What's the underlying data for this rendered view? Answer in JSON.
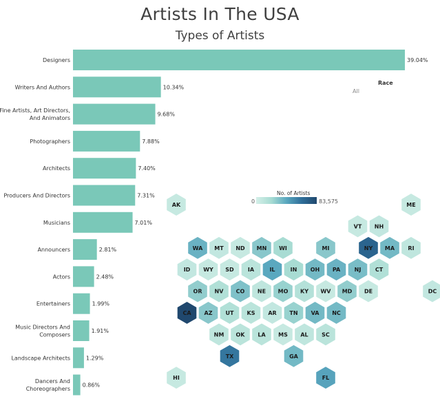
{
  "title": "Artists In The USA",
  "filter": {
    "label": "Race",
    "value": "All"
  },
  "legend": {
    "title": "No. of Artists",
    "min": "0",
    "max": "83,575"
  },
  "chart_data": [
    {
      "type": "bar",
      "orientation": "horizontal",
      "title": "Types of Artists",
      "color": "#7ac8b8",
      "xlim": [
        0,
        39.04
      ],
      "categories": [
        [
          "Designers"
        ],
        [
          "Writers And Authors"
        ],
        [
          "Fine Artists, Art Directors,",
          "And Animators"
        ],
        [
          "Photographers"
        ],
        [
          "Architects"
        ],
        [
          "Producers And Directors"
        ],
        [
          "Musicians"
        ],
        [
          "Announcers"
        ],
        [
          "Actors"
        ],
        [
          "Entertainers"
        ],
        [
          "Music Directors And",
          "Composers"
        ],
        [
          "Landscape Architects"
        ],
        [
          "Dancers And",
          "Choreographers"
        ]
      ],
      "values": [
        39.04,
        10.34,
        9.68,
        7.88,
        7.4,
        7.31,
        7.01,
        2.81,
        2.48,
        1.99,
        1.91,
        1.29,
        0.86
      ],
      "value_labels": [
        "39.04%",
        "10.34%",
        "9.68%",
        "7.88%",
        "7.40%",
        "7.31%",
        "7.01%",
        "2.81%",
        "2.48%",
        "1.99%",
        "1.91%",
        "1.29%",
        "0.86%"
      ]
    },
    {
      "type": "heatmap",
      "subtype": "hex tile map",
      "color_scale": {
        "min": 0,
        "max": 83575,
        "low_color": "#d4efe8",
        "high_color": "#20486e"
      },
      "tiles": [
        {
          "state": "AK",
          "row": 0,
          "col": 0,
          "level": 0.08
        },
        {
          "state": "ME",
          "row": 0,
          "col": 11,
          "level": 0.08
        },
        {
          "state": "VT",
          "row": 1,
          "col": 9,
          "level": 0.08
        },
        {
          "state": "NH",
          "row": 1,
          "col": 10,
          "level": 0.1
        },
        {
          "state": "WA",
          "row": 2,
          "col": 1,
          "level": 0.45
        },
        {
          "state": "MT",
          "row": 2,
          "col": 2,
          "level": 0.1
        },
        {
          "state": "ND",
          "row": 2,
          "col": 3,
          "level": 0.08
        },
        {
          "state": "MN",
          "row": 2,
          "col": 4,
          "level": 0.35
        },
        {
          "state": "WI",
          "row": 2,
          "col": 5,
          "level": 0.25
        },
        {
          "state": "MI",
          "row": 2,
          "col": 7,
          "level": 0.35
        },
        {
          "state": "NY",
          "row": 2,
          "col": 9,
          "level": 0.82
        },
        {
          "state": "MA",
          "row": 2,
          "col": 10,
          "level": 0.42
        },
        {
          "state": "RI",
          "row": 2,
          "col": 11,
          "level": 0.12
        },
        {
          "state": "ID",
          "row": 3,
          "col": 1,
          "level": 0.1
        },
        {
          "state": "WY",
          "row": 3,
          "col": 2,
          "level": 0.08
        },
        {
          "state": "SD",
          "row": 3,
          "col": 3,
          "level": 0.08
        },
        {
          "state": "IA",
          "row": 3,
          "col": 4,
          "level": 0.15
        },
        {
          "state": "IL",
          "row": 3,
          "col": 5,
          "level": 0.5
        },
        {
          "state": "IN",
          "row": 3,
          "col": 6,
          "level": 0.25
        },
        {
          "state": "OH",
          "row": 3,
          "col": 7,
          "level": 0.42
        },
        {
          "state": "PA",
          "row": 3,
          "col": 8,
          "level": 0.45
        },
        {
          "state": "NJ",
          "row": 3,
          "col": 9,
          "level": 0.4
        },
        {
          "state": "CT",
          "row": 3,
          "col": 10,
          "level": 0.2
        },
        {
          "state": "OR",
          "row": 4,
          "col": 1,
          "level": 0.32
        },
        {
          "state": "NV",
          "row": 4,
          "col": 2,
          "level": 0.2
        },
        {
          "state": "CO",
          "row": 4,
          "col": 3,
          "level": 0.38
        },
        {
          "state": "NE",
          "row": 4,
          "col": 4,
          "level": 0.12
        },
        {
          "state": "MO",
          "row": 4,
          "col": 5,
          "level": 0.3
        },
        {
          "state": "KY",
          "row": 4,
          "col": 6,
          "level": 0.18
        },
        {
          "state": "WV",
          "row": 4,
          "col": 7,
          "level": 0.08
        },
        {
          "state": "MD",
          "row": 4,
          "col": 8,
          "level": 0.32
        },
        {
          "state": "DE",
          "row": 4,
          "col": 9,
          "level": 0.08
        },
        {
          "state": "DC",
          "row": 4,
          "col": 12,
          "level": 0.1
        },
        {
          "state": "CA",
          "row": 5,
          "col": 1,
          "level": 1.0
        },
        {
          "state": "AZ",
          "row": 5,
          "col": 2,
          "level": 0.35
        },
        {
          "state": "UT",
          "row": 5,
          "col": 3,
          "level": 0.2
        },
        {
          "state": "KS",
          "row": 5,
          "col": 4,
          "level": 0.15
        },
        {
          "state": "AR",
          "row": 5,
          "col": 5,
          "level": 0.1
        },
        {
          "state": "TN",
          "row": 5,
          "col": 6,
          "level": 0.3
        },
        {
          "state": "VA",
          "row": 5,
          "col": 7,
          "level": 0.42
        },
        {
          "state": "NC",
          "row": 5,
          "col": 8,
          "level": 0.42
        },
        {
          "state": "NM",
          "row": 6,
          "col": 2,
          "level": 0.12
        },
        {
          "state": "OK",
          "row": 6,
          "col": 3,
          "level": 0.15
        },
        {
          "state": "LA",
          "row": 6,
          "col": 4,
          "level": 0.15
        },
        {
          "state": "MS",
          "row": 6,
          "col": 5,
          "level": 0.08
        },
        {
          "state": "AL",
          "row": 6,
          "col": 6,
          "level": 0.12
        },
        {
          "state": "SC",
          "row": 6,
          "col": 7,
          "level": 0.15
        },
        {
          "state": "TX",
          "row": 7,
          "col": 3,
          "level": 0.72
        },
        {
          "state": "GA",
          "row": 7,
          "col": 6,
          "level": 0.42
        },
        {
          "state": "HI",
          "row": 8,
          "col": 0,
          "level": 0.08
        },
        {
          "state": "FL",
          "row": 8,
          "col": 7,
          "level": 0.52
        }
      ]
    }
  ]
}
